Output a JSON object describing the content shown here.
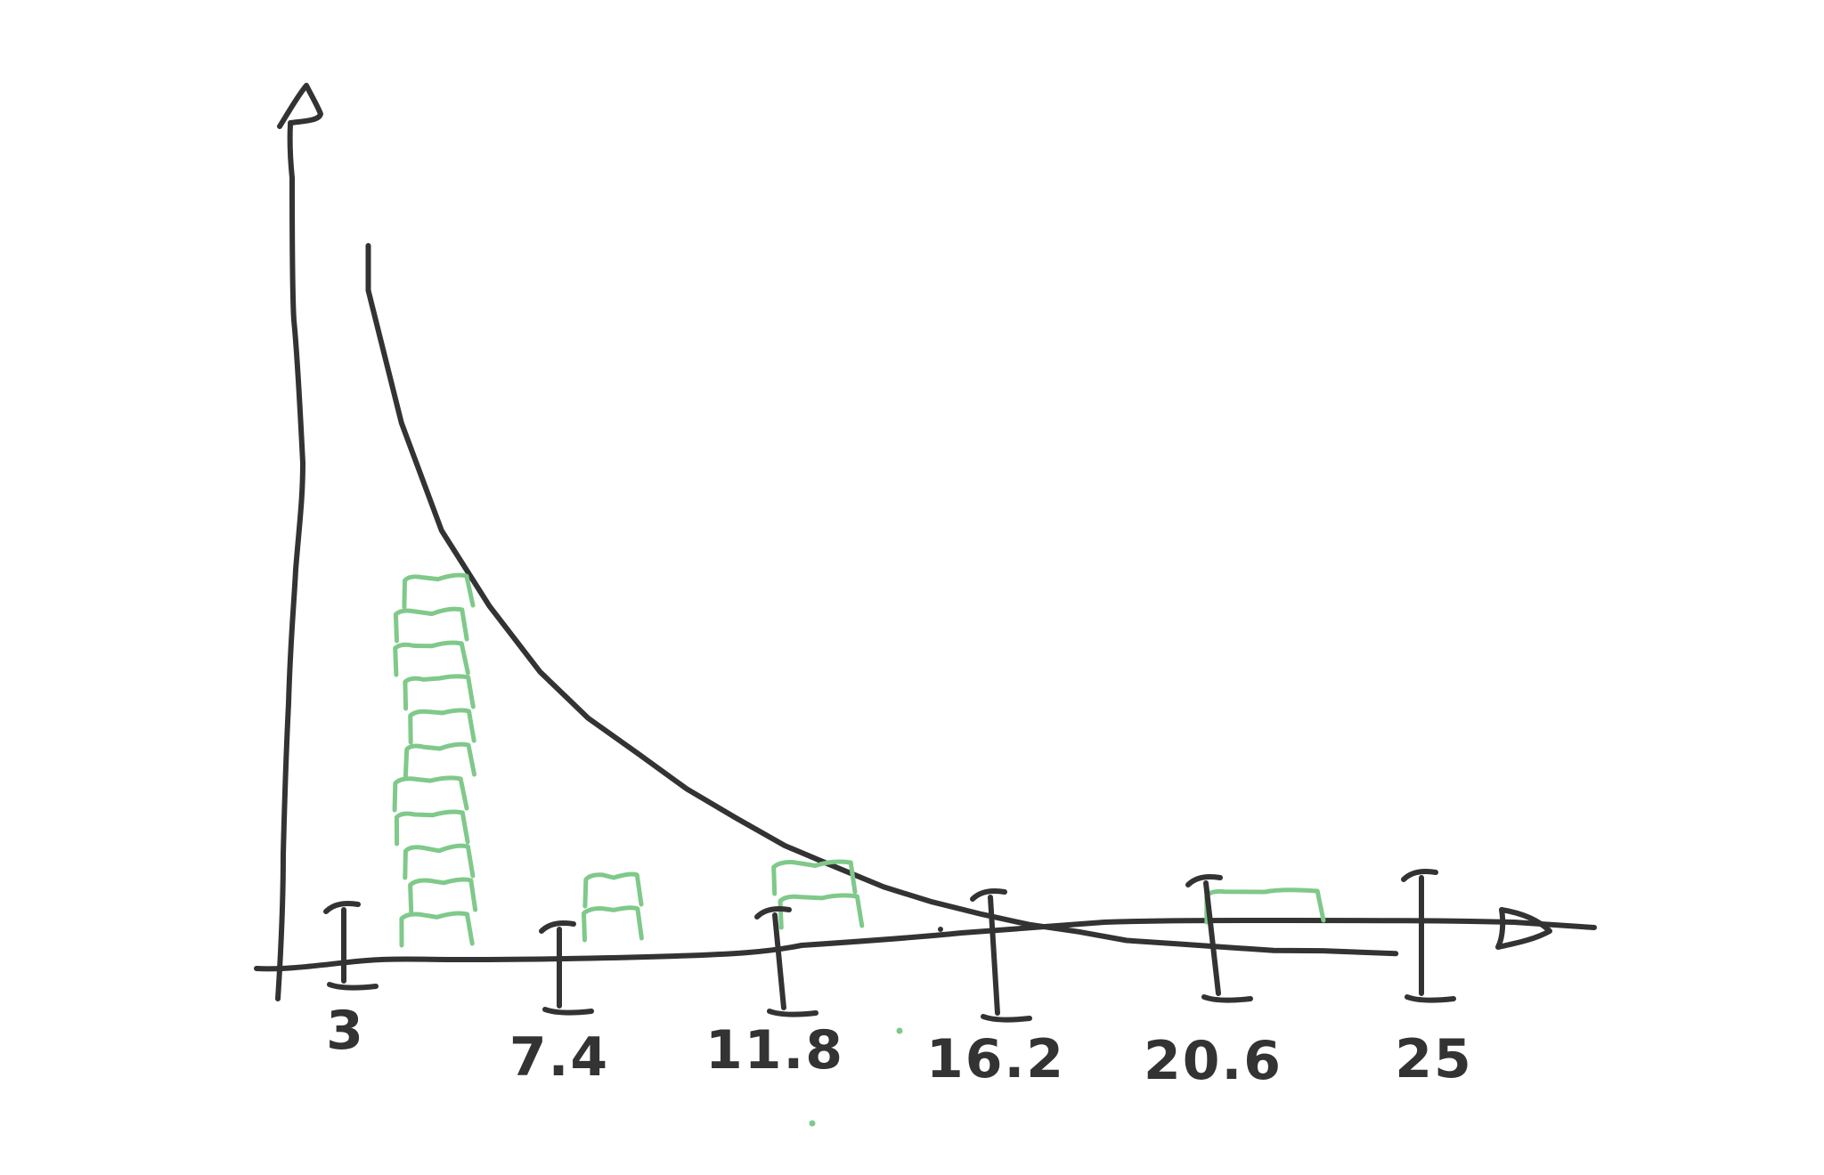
{
  "chart_data": {
    "type": "bar",
    "title": "",
    "xlabel": "",
    "ylabel": "",
    "bin_edges": [
      3,
      7.4,
      11.8,
      16.2,
      20.6,
      25
    ],
    "tick_labels": [
      "3",
      "7.4",
      "11.8",
      "16.2",
      "20.6",
      "25"
    ],
    "bars": [
      {
        "x_start": 4.2,
        "x_end": 5.6,
        "count": 11
      },
      {
        "x_start": 7.8,
        "x_end": 9.0,
        "count": 2
      },
      {
        "x_start": 11.8,
        "x_end": 13.5,
        "count": 2
      },
      {
        "x_start": 20.6,
        "x_end": 23.0,
        "count": 1
      }
    ],
    "xlim": [
      1.3,
      27
    ],
    "ylim": [
      0,
      26
    ],
    "density_curve": {
      "type": "line",
      "description_values": [
        [
          3.5,
          25.0
        ],
        [
          4.2,
          20.0
        ],
        [
          5,
          16.0
        ],
        [
          6,
          13.2
        ],
        [
          7,
          10.7
        ],
        [
          8,
          9.0
        ],
        [
          9,
          7.6
        ],
        [
          10,
          6.3
        ],
        [
          11,
          5.2
        ],
        [
          12,
          4.2
        ],
        [
          13,
          3.4
        ],
        [
          14,
          2.7
        ],
        [
          15,
          2.1
        ],
        [
          16,
          1.6
        ],
        [
          17,
          1.25
        ],
        [
          18,
          0.95
        ],
        [
          19,
          0.7
        ],
        [
          20,
          0.5
        ],
        [
          21,
          0.38
        ],
        [
          22,
          0.3
        ],
        [
          23,
          0.25
        ],
        [
          24.5,
          0.2
        ]
      ]
    },
    "grid": false,
    "legend": "none"
  },
  "colors": {
    "ink": "#333333",
    "bars": "#7fc98a"
  }
}
